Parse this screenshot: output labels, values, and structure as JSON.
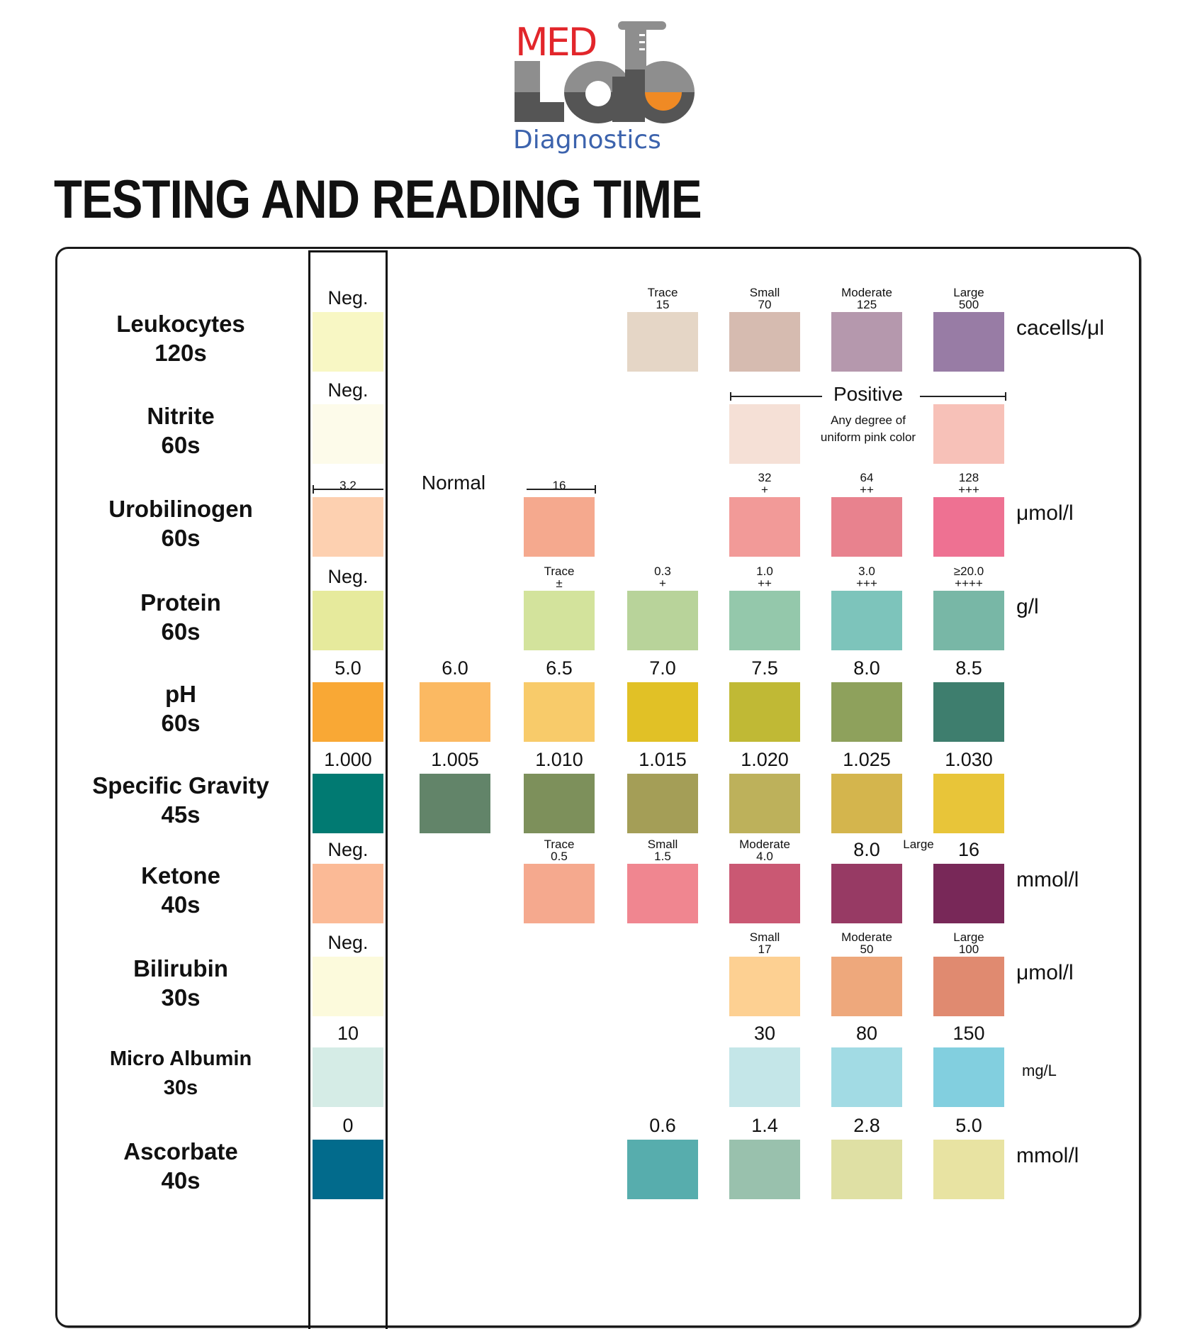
{
  "logo": {
    "brand_top": "MED",
    "brand_middle": "Lab",
    "brand_bottom": "Diagnostics",
    "colors": {
      "red": "#e2262b",
      "gray_light": "#8e8e8e",
      "gray_dark": "#555555",
      "orange": "#f08a24",
      "blue": "#3c63ad"
    }
  },
  "title": "TESTING AND READING TIME",
  "rows": [
    {
      "name": "Leukocytes",
      "time": "120s",
      "unit": "cacells/μl",
      "pads": [
        {
          "col": 0,
          "color": "#f8f7c4",
          "label": "Neg."
        },
        {
          "col": 3,
          "color": "#e5d6c6",
          "label_top": "Trace",
          "label": "15"
        },
        {
          "col": 4,
          "color": "#d6bbb0",
          "label_top": "Small",
          "label": "70"
        },
        {
          "col": 5,
          "color": "#b598ad",
          "label_top": "Moderate",
          "label": "125"
        },
        {
          "col": 6,
          "color": "#987ca5",
          "label_top": "Large",
          "label": "500"
        }
      ]
    },
    {
      "name": "Nitrite",
      "time": "60s",
      "unit": "",
      "positive_label": "Positive",
      "note_line1": "Any degree of",
      "note_line2": "uniform pink color",
      "pads": [
        {
          "col": 0,
          "color": "#fdfbea",
          "label": "Neg."
        },
        {
          "col": 4,
          "color": "#f5e0d6",
          "label": ""
        },
        {
          "col": 6,
          "color": "#f7c1b8",
          "label": ""
        }
      ]
    },
    {
      "name": "Urobilinogen",
      "time": "60s",
      "unit": "μmol/l",
      "normal_label": "Normal",
      "pads": [
        {
          "col": 0,
          "color": "#fdd0b0",
          "label": "3.2"
        },
        {
          "col": 2,
          "color": "#f5a98e",
          "label": "16"
        },
        {
          "col": 4,
          "color": "#f29a98",
          "label_top": "32",
          "label": "+"
        },
        {
          "col": 5,
          "color": "#e8828e",
          "label_top": "64",
          "label": "++"
        },
        {
          "col": 6,
          "color": "#ee7192",
          "label_top": "128",
          "label": "+++"
        }
      ]
    },
    {
      "name": "Protein",
      "time": "60s",
      "unit": "g/l",
      "pads": [
        {
          "col": 0,
          "color": "#e6ea9c",
          "label": "Neg."
        },
        {
          "col": 2,
          "color": "#d3e39c",
          "label_top": "Trace",
          "label": "±"
        },
        {
          "col": 3,
          "color": "#b8d39a",
          "label_top": "0.3",
          "label": "+"
        },
        {
          "col": 4,
          "color": "#94c8ab",
          "label_top": "1.0",
          "label": "++"
        },
        {
          "col": 5,
          "color": "#7dc4bb",
          "label_top": "3.0",
          "label": "+++"
        },
        {
          "col": 6,
          "color": "#78b7a6",
          "label_top": "≥20.0",
          "label": "++++"
        }
      ]
    },
    {
      "name": "pH",
      "time": "60s",
      "unit": "",
      "pads": [
        {
          "col": 0,
          "color": "#f9a835",
          "label": "5.0"
        },
        {
          "col": 1,
          "color": "#fbb962",
          "label": "6.0"
        },
        {
          "col": 2,
          "color": "#f8cb6a",
          "label": "6.5"
        },
        {
          "col": 3,
          "color": "#e1c126",
          "label": "7.0"
        },
        {
          "col": 4,
          "color": "#c0b935",
          "label": "7.5"
        },
        {
          "col": 5,
          "color": "#8ea15c",
          "label": "8.0"
        },
        {
          "col": 6,
          "color": "#3e7e6e",
          "label": "8.5"
        }
      ]
    },
    {
      "name": "Specific Gravity",
      "time": "45s",
      "unit": "",
      "pads": [
        {
          "col": 0,
          "color": "#017a72",
          "label": "1.000"
        },
        {
          "col": 1,
          "color": "#628469",
          "label": "1.005"
        },
        {
          "col": 2,
          "color": "#7d905b",
          "label": "1.010"
        },
        {
          "col": 3,
          "color": "#a49e57",
          "label": "1.015"
        },
        {
          "col": 4,
          "color": "#bdb15b",
          "label": "1.020"
        },
        {
          "col": 5,
          "color": "#d4b54d",
          "label": "1.025"
        },
        {
          "col": 6,
          "color": "#e8c539",
          "label": "1.030"
        }
      ]
    },
    {
      "name": "Ketone",
      "time": "40s",
      "unit": "mmol/l",
      "large_label": "Large",
      "pads": [
        {
          "col": 0,
          "color": "#fbba96",
          "label": "Neg."
        },
        {
          "col": 2,
          "color": "#f5a98e",
          "label_top": "Trace",
          "label": "0.5"
        },
        {
          "col": 3,
          "color": "#f08690",
          "label_top": "Small",
          "label": "1.5"
        },
        {
          "col": 4,
          "color": "#ca5873",
          "label_top": "Moderate",
          "label": "4.0"
        },
        {
          "col": 5,
          "color": "#973a64",
          "label": "8.0"
        },
        {
          "col": 6,
          "color": "#782858",
          "label": "16"
        }
      ]
    },
    {
      "name": "Bilirubin",
      "time": "30s",
      "unit": "μmol/l",
      "pads": [
        {
          "col": 0,
          "color": "#fcfadc",
          "label": "Neg."
        },
        {
          "col": 4,
          "color": "#fdd092",
          "label_top": "Small",
          "label": "17"
        },
        {
          "col": 5,
          "color": "#eea87c",
          "label_top": "Moderate",
          "label": "50"
        },
        {
          "col": 6,
          "color": "#e08a70",
          "label_top": "Large",
          "label": "100"
        }
      ]
    },
    {
      "name": "Micro Albumin",
      "time": "30s",
      "unit": "mg/L",
      "pads": [
        {
          "col": 0,
          "color": "#d5ece6",
          "label": "10"
        },
        {
          "col": 4,
          "color": "#c4e6e8",
          "label": "30"
        },
        {
          "col": 5,
          "color": "#a2dbe4",
          "label": "80"
        },
        {
          "col": 6,
          "color": "#82cfdf",
          "label": "150"
        }
      ]
    },
    {
      "name": "Ascorbate",
      "time": "40s",
      "unit": "mmol/l",
      "pads": [
        {
          "col": 0,
          "color": "#026b8c",
          "label": "0"
        },
        {
          "col": 3,
          "color": "#57adad",
          "label": "0.6"
        },
        {
          "col": 4,
          "color": "#99c1ad",
          "label": "1.4"
        },
        {
          "col": 5,
          "color": "#dfe0a4",
          "label": "2.8"
        },
        {
          "col": 6,
          "color": "#e8e3a2",
          "label": "5.0"
        }
      ]
    }
  ]
}
